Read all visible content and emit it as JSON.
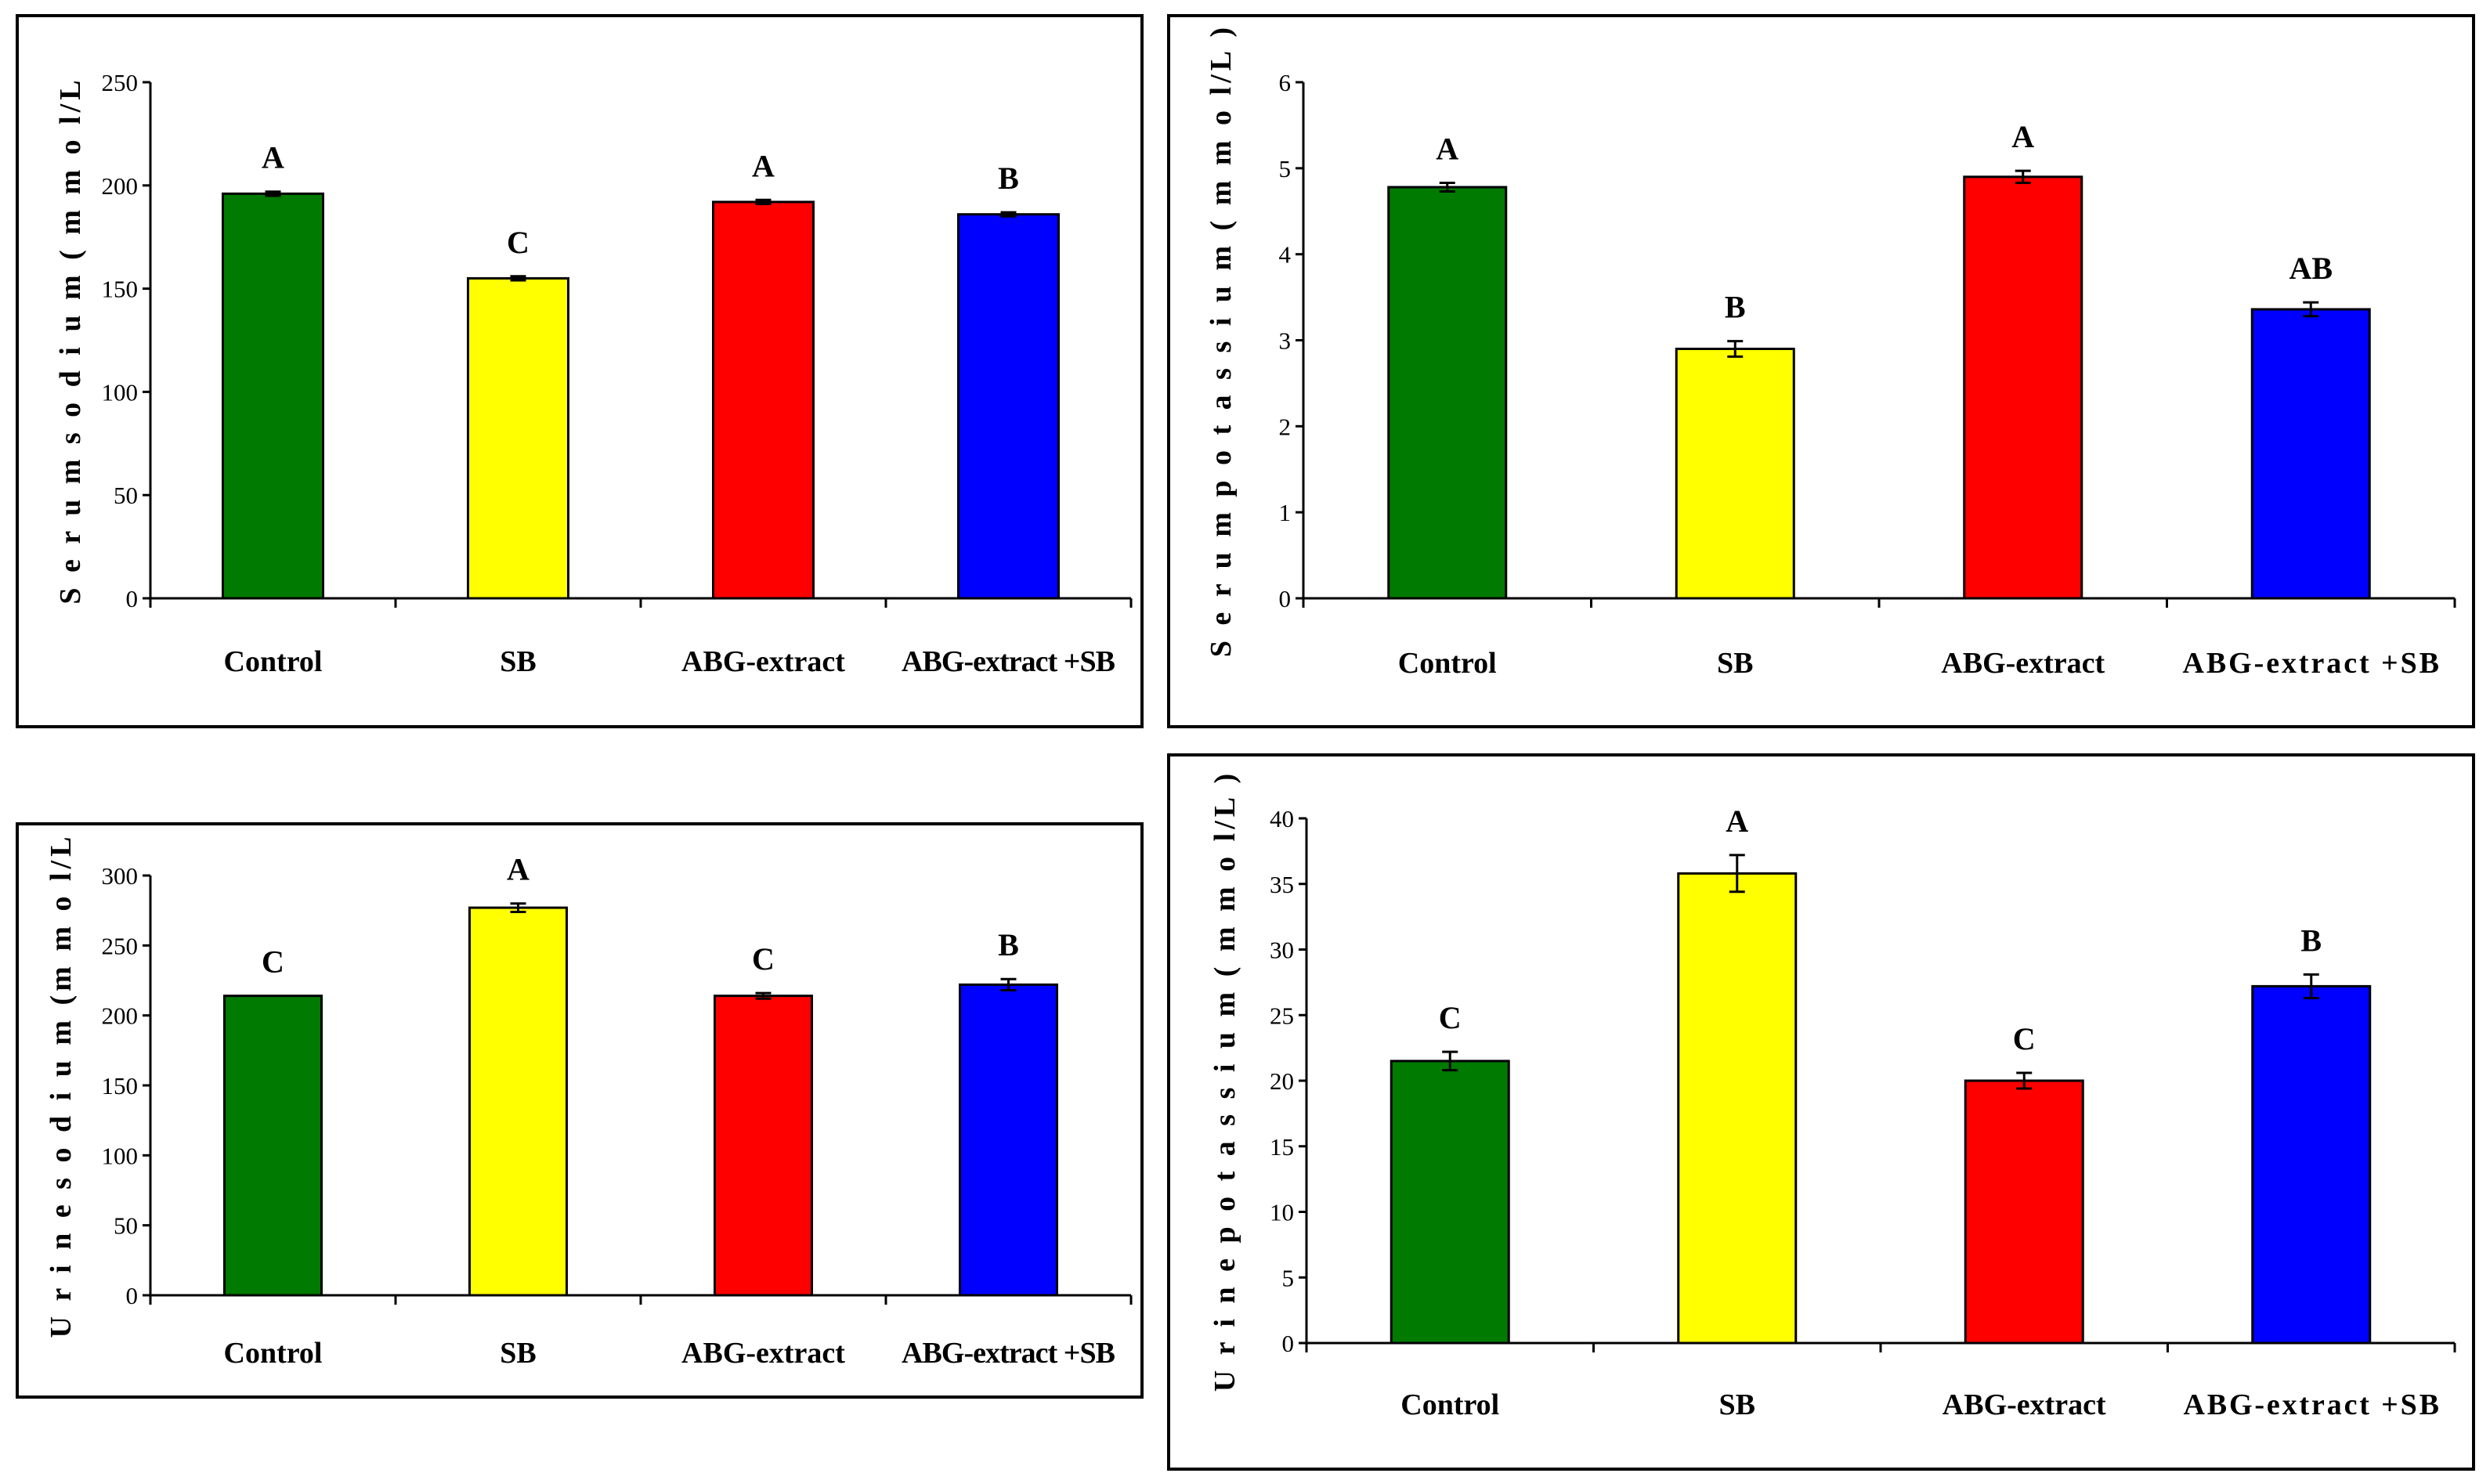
{
  "chart_data": [
    {
      "type": "bar",
      "ylabel": "S e r u m   s o d i u m  ( m m o l/L",
      "categories": [
        "Control",
        "SB",
        "ABG-extract",
        "ABG-extract +SB"
      ],
      "values": [
        196,
        155,
        192,
        186
      ],
      "errors": [
        1,
        1,
        1,
        1
      ],
      "significance": [
        "A",
        "C",
        "A",
        "B"
      ],
      "colors": [
        "#007a00",
        "#ffff00",
        "#ff0000",
        "#0000ff"
      ],
      "ylim": [
        0,
        250
      ],
      "yticks": [
        "0",
        "50",
        "100",
        "150",
        "200",
        "250"
      ]
    },
    {
      "type": "bar",
      "ylabel": "S e r u m   p o t a s s i u m  ( m m o l/L )",
      "categories": [
        "Control",
        "SB",
        "ABG-extract",
        "ABG-extract +SB"
      ],
      "values": [
        4.78,
        2.9,
        4.9,
        3.36
      ],
      "errors": [
        0.05,
        0.09,
        0.07,
        0.08
      ],
      "significance": [
        "A",
        "B",
        "A",
        "AB"
      ],
      "colors": [
        "#007a00",
        "#ffff00",
        "#ff0000",
        "#0000ff"
      ],
      "ylim": [
        0,
        6
      ],
      "yticks": [
        "0",
        "1",
        "2",
        "3",
        "4",
        "5",
        "6"
      ]
    },
    {
      "type": "bar",
      "ylabel": "U r i n e  s o d i u m  (m m o l/L",
      "categories": [
        "Control",
        "SB",
        "ABG-extract",
        "ABG-extract +SB"
      ],
      "values": [
        214,
        277,
        214,
        222
      ],
      "errors": [
        0,
        3,
        2,
        4
      ],
      "significance": [
        "C",
        "A",
        "C",
        "B"
      ],
      "colors": [
        "#007a00",
        "#ffff00",
        "#ff0000",
        "#0000ff"
      ],
      "ylim": [
        0,
        300
      ],
      "yticks": [
        "0",
        "50",
        "100",
        "150",
        "200",
        "250",
        "300"
      ]
    },
    {
      "type": "bar",
      "ylabel": "U r i n e  p o t a s s i u m  ( m m o l/L )",
      "categories": [
        "Control",
        "SB",
        "ABG-extract",
        "ABG-extract +SB"
      ],
      "values": [
        21.5,
        35.8,
        20.0,
        27.2
      ],
      "errors": [
        0.7,
        1.4,
        0.6,
        0.9
      ],
      "significance": [
        "C",
        "A",
        "C",
        "B"
      ],
      "colors": [
        "#007a00",
        "#ffff00",
        "#ff0000",
        "#0000ff"
      ],
      "ylim": [
        0,
        40
      ],
      "yticks": [
        "0",
        "5",
        "10",
        "15",
        "20",
        "25",
        "30",
        "35",
        "40"
      ]
    }
  ]
}
